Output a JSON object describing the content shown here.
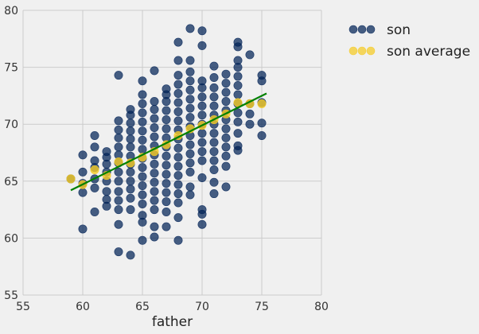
{
  "chart_data": {
    "type": "scatter",
    "xlabel": "father",
    "ylabel": "",
    "xlim": [
      55,
      80
    ],
    "ylim": [
      55,
      80
    ],
    "xticks": [
      "55",
      "60",
      "65",
      "70",
      "75",
      "80"
    ],
    "yticks": [
      "55",
      "60",
      "65",
      "70",
      "75",
      "80"
    ],
    "grid": true,
    "legend_placement": "outside-top-right",
    "series": [
      {
        "name": "son",
        "color": "#012256",
        "points": [
          [
            59,
            65.2
          ],
          [
            60,
            60.8
          ],
          [
            60,
            64
          ],
          [
            60,
            64.8
          ],
          [
            60,
            65.8
          ],
          [
            60,
            67.3
          ],
          [
            61,
            62.3
          ],
          [
            61,
            64.4
          ],
          [
            61,
            65.2
          ],
          [
            61,
            66.2
          ],
          [
            61,
            66.8
          ],
          [
            61,
            68
          ],
          [
            61,
            69
          ],
          [
            62,
            62.8
          ],
          [
            62,
            63.4
          ],
          [
            62,
            64.1
          ],
          [
            62,
            65
          ],
          [
            62,
            65.8
          ],
          [
            62,
            66.5
          ],
          [
            62,
            67.1
          ],
          [
            62,
            67.6
          ],
          [
            63,
            58.8
          ],
          [
            63,
            61.2
          ],
          [
            63,
            62.5
          ],
          [
            63,
            63.3
          ],
          [
            63,
            64.1
          ],
          [
            63,
            65
          ],
          [
            63,
            65.8
          ],
          [
            63,
            66.6
          ],
          [
            63,
            67.3
          ],
          [
            63,
            68
          ],
          [
            63,
            68.8
          ],
          [
            63,
            69.5
          ],
          [
            63,
            70.3
          ],
          [
            63,
            74.3
          ],
          [
            64,
            58.5
          ],
          [
            64,
            62.5
          ],
          [
            64,
            63.5
          ],
          [
            64,
            64.3
          ],
          [
            64,
            65
          ],
          [
            64,
            65.8
          ],
          [
            64,
            66.5
          ],
          [
            64,
            67.2
          ],
          [
            64,
            68
          ],
          [
            64,
            68.7
          ],
          [
            64,
            69.4
          ],
          [
            64,
            70.1
          ],
          [
            64,
            70.8
          ],
          [
            64,
            71.3
          ],
          [
            65,
            59.8
          ],
          [
            65,
            61.4
          ],
          [
            65,
            62
          ],
          [
            65,
            63
          ],
          [
            65,
            63.8
          ],
          [
            65,
            64.6
          ],
          [
            65,
            65.4
          ],
          [
            65,
            66.2
          ],
          [
            65,
            67
          ],
          [
            65,
            67.8
          ],
          [
            65,
            68.6
          ],
          [
            65,
            69.4
          ],
          [
            65,
            70.2
          ],
          [
            65,
            71
          ],
          [
            65,
            71.8
          ],
          [
            65,
            72.6
          ],
          [
            65,
            73.8
          ],
          [
            66,
            60.1
          ],
          [
            66,
            61
          ],
          [
            66,
            62.5
          ],
          [
            66,
            63.3
          ],
          [
            66,
            64.1
          ],
          [
            66,
            64.9
          ],
          [
            66,
            65.7
          ],
          [
            66,
            66.5
          ],
          [
            66,
            67.3
          ],
          [
            66,
            68.1
          ],
          [
            66,
            68.9
          ],
          [
            66,
            69.7
          ],
          [
            66,
            70.5
          ],
          [
            66,
            71.3
          ],
          [
            66,
            72
          ],
          [
            66,
            74.7
          ],
          [
            67,
            61
          ],
          [
            67,
            62.3
          ],
          [
            67,
            63.2
          ],
          [
            67,
            64
          ],
          [
            67,
            64.8
          ],
          [
            67,
            65.6
          ],
          [
            67,
            66.4
          ],
          [
            67,
            67.2
          ],
          [
            67,
            68
          ],
          [
            67,
            68.8
          ],
          [
            67,
            69.6
          ],
          [
            67,
            70.4
          ],
          [
            67,
            71.2
          ],
          [
            67,
            72
          ],
          [
            67,
            72.6
          ],
          [
            67,
            73.1
          ],
          [
            68,
            59.8
          ],
          [
            68,
            61.8
          ],
          [
            68,
            63.1
          ],
          [
            68,
            63.9
          ],
          [
            68,
            64.7
          ],
          [
            68,
            65.5
          ],
          [
            68,
            66.3
          ],
          [
            68,
            67.1
          ],
          [
            68,
            67.9
          ],
          [
            68,
            68.7
          ],
          [
            68,
            69.5
          ],
          [
            68,
            70.3
          ],
          [
            68,
            71.1
          ],
          [
            68,
            71.9
          ],
          [
            68,
            72.7
          ],
          [
            68,
            73.5
          ],
          [
            68,
            74.3
          ],
          [
            68,
            75.6
          ],
          [
            68,
            77.2
          ],
          [
            69,
            63.8
          ],
          [
            69,
            64.5
          ],
          [
            69,
            65.8
          ],
          [
            69,
            66.6
          ],
          [
            69,
            67.4
          ],
          [
            69,
            68.2
          ],
          [
            69,
            69
          ],
          [
            69,
            69.8
          ],
          [
            69,
            70.6
          ],
          [
            69,
            71.4
          ],
          [
            69,
            72.2
          ],
          [
            69,
            73
          ],
          [
            69,
            73.8
          ],
          [
            69,
            74.6
          ],
          [
            69,
            75.6
          ],
          [
            69,
            78.4
          ],
          [
            70,
            61.2
          ],
          [
            70,
            62.1
          ],
          [
            70,
            62.5
          ],
          [
            70,
            65.3
          ],
          [
            70,
            66.8
          ],
          [
            70,
            67.6
          ],
          [
            70,
            68.4
          ],
          [
            70,
            69.2
          ],
          [
            70,
            70
          ],
          [
            70,
            70.8
          ],
          [
            70,
            71.6
          ],
          [
            70,
            72.4
          ],
          [
            70,
            73.2
          ],
          [
            70,
            73.8
          ],
          [
            70,
            76.9
          ],
          [
            70,
            78.2
          ],
          [
            71,
            63.9
          ],
          [
            71,
            64.9
          ],
          [
            71,
            66
          ],
          [
            71,
            66.8
          ],
          [
            71,
            67.6
          ],
          [
            71,
            68.4
          ],
          [
            71,
            69.2
          ],
          [
            71,
            70
          ],
          [
            71,
            70.8
          ],
          [
            71,
            71.6
          ],
          [
            71,
            72.4
          ],
          [
            71,
            73.2
          ],
          [
            71,
            74.1
          ],
          [
            71,
            75.1
          ],
          [
            72,
            64.5
          ],
          [
            72,
            66.3
          ],
          [
            72,
            67.2
          ],
          [
            72,
            68
          ],
          [
            72,
            68.8
          ],
          [
            72,
            69.6
          ],
          [
            72,
            70.4
          ],
          [
            72,
            71.2
          ],
          [
            72,
            72
          ],
          [
            72,
            72.8
          ],
          [
            72,
            73.6
          ],
          [
            72,
            74.4
          ],
          [
            73,
            67.7
          ],
          [
            73,
            68.1
          ],
          [
            73,
            69.2
          ],
          [
            73,
            70.2
          ],
          [
            73,
            71
          ],
          [
            73,
            71.8
          ],
          [
            73,
            72.6
          ],
          [
            73,
            73.4
          ],
          [
            73,
            74.2
          ],
          [
            73,
            75
          ],
          [
            73,
            75.6
          ],
          [
            73,
            76.8
          ],
          [
            73,
            77.2
          ],
          [
            74,
            70
          ],
          [
            74,
            70.9
          ],
          [
            74,
            71.8
          ],
          [
            74,
            76.1
          ],
          [
            75,
            69
          ],
          [
            75,
            70.1
          ],
          [
            75,
            71.9
          ],
          [
            75,
            73.8
          ],
          [
            75,
            74.3
          ]
        ]
      },
      {
        "name": "son average",
        "color": "#f5cb23",
        "points": [
          [
            59,
            65.2
          ],
          [
            60,
            64.7
          ],
          [
            61,
            66
          ],
          [
            62,
            65.5
          ],
          [
            63,
            66.7
          ],
          [
            64,
            66.6
          ],
          [
            65,
            67.1
          ],
          [
            66,
            67.6
          ],
          [
            67,
            68.2
          ],
          [
            68,
            69
          ],
          [
            69,
            69.6
          ],
          [
            70,
            69.9
          ],
          [
            71,
            70.4
          ],
          [
            72,
            70.9
          ],
          [
            73,
            71.9
          ],
          [
            74,
            71.8
          ],
          [
            75,
            71.8
          ]
        ]
      }
    ],
    "fit_line": {
      "color": "#008000",
      "x": [
        59,
        75.4
      ],
      "y": [
        64.2,
        72.7
      ]
    }
  }
}
